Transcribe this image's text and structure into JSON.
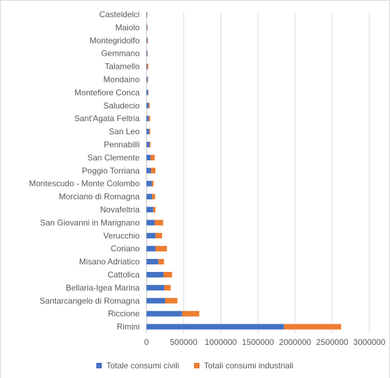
{
  "chart_data": {
    "type": "bar",
    "orientation": "horizontal",
    "stacked": true,
    "title": "",
    "xlabel": "",
    "ylabel": "",
    "categories": [
      "Rimini",
      "Riccione",
      "Santarcangelo di Romagna",
      "Bellaria-Igea Marina",
      "Cattolica",
      "Misano Adriatico",
      "Coriano",
      "Verucchio",
      "San Giovanni in Marignano",
      "Novafeltria",
      "Morciano di Romagna",
      "Montescudo - Monte Colombo",
      "Poggio Torriana",
      "San Clemente",
      "Pennabilli",
      "San Leo",
      "Sant'Agata Feltria",
      "Saludecio",
      "Montefiore Conca",
      "Mondaino",
      "Talamello",
      "Gemmano",
      "Montegridolfo",
      "Maiolo",
      "Casteldelci"
    ],
    "series": [
      {
        "name": "Totale consumi civili",
        "color": "#4472c4",
        "values": [
          1850000,
          480000,
          250000,
          240000,
          230000,
          160000,
          120000,
          120000,
          110000,
          90000,
          75000,
          70000,
          60000,
          55000,
          40000,
          35000,
          30000,
          30000,
          20000,
          15000,
          10000,
          10000,
          10000,
          8000,
          5000
        ]
      },
      {
        "name": "Totali consumi industriali",
        "color": "#ed7d31",
        "values": [
          770000,
          230000,
          165000,
          85000,
          115000,
          75000,
          155000,
          90000,
          115000,
          30000,
          40000,
          25000,
          60000,
          55000,
          15000,
          15000,
          20000,
          15000,
          5000,
          5000,
          15000,
          5000,
          10000,
          7000,
          5000
        ]
      }
    ],
    "xlim": [
      0,
      3000000
    ],
    "xticks": [
      "0",
      "500000",
      "1000000",
      "1500000",
      "2000000",
      "2500000",
      "3000000"
    ],
    "grid": true,
    "legend": "bottom"
  }
}
